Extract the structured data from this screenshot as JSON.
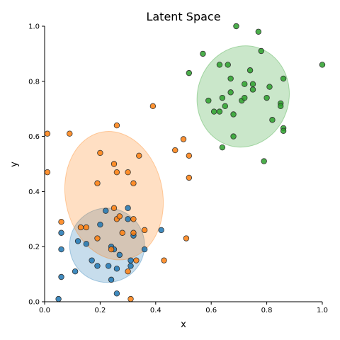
{
  "chart_data": {
    "type": "scatter",
    "title": "Latent Space",
    "xlabel": "x",
    "ylabel": "y",
    "xlim": [
      0,
      1
    ],
    "ylim": [
      0,
      1
    ],
    "xticks": [
      "0.0",
      "0.2",
      "0.4",
      "0.6",
      "0.8",
      "1.0"
    ],
    "yticks": [
      "0.0",
      "0.2",
      "0.4",
      "0.6",
      "0.8",
      "1.0"
    ],
    "grid": false,
    "legend": null,
    "series": [
      {
        "color": "#1f77b4",
        "points": [
          [
            0.05,
            0.01
          ],
          [
            0.06,
            0.25
          ],
          [
            0.06,
            0.19
          ],
          [
            0.06,
            0.09
          ],
          [
            0.11,
            0.11
          ],
          [
            0.12,
            0.22
          ],
          [
            0.15,
            0.21
          ],
          [
            0.17,
            0.15
          ],
          [
            0.19,
            0.13
          ],
          [
            0.2,
            0.28
          ],
          [
            0.22,
            0.33
          ],
          [
            0.23,
            0.13
          ],
          [
            0.24,
            0.08
          ],
          [
            0.24,
            0.2
          ],
          [
            0.25,
            0.19
          ],
          [
            0.26,
            0.12
          ],
          [
            0.26,
            0.03
          ],
          [
            0.27,
            0.17
          ],
          [
            0.3,
            0.34
          ],
          [
            0.3,
            0.3
          ],
          [
            0.31,
            0.15
          ],
          [
            0.31,
            0.13
          ],
          [
            0.32,
            0.24
          ],
          [
            0.36,
            0.19
          ],
          [
            0.42,
            0.26
          ]
        ],
        "ellipse": {
          "cx": 0.225,
          "cy": 0.205,
          "rx": 0.135,
          "ry": 0.135
        }
      },
      {
        "color": "#ff7f0e",
        "points": [
          [
            0.01,
            0.61
          ],
          [
            0.01,
            0.47
          ],
          [
            0.06,
            0.29
          ],
          [
            0.09,
            0.61
          ],
          [
            0.13,
            0.27
          ],
          [
            0.15,
            0.27
          ],
          [
            0.19,
            0.43
          ],
          [
            0.19,
            0.23
          ],
          [
            0.2,
            0.54
          ],
          [
            0.24,
            0.19
          ],
          [
            0.25,
            0.5
          ],
          [
            0.25,
            0.34
          ],
          [
            0.26,
            0.64
          ],
          [
            0.26,
            0.47
          ],
          [
            0.26,
            0.3
          ],
          [
            0.27,
            0.31
          ],
          [
            0.28,
            0.25
          ],
          [
            0.3,
            0.47
          ],
          [
            0.3,
            0.11
          ],
          [
            0.31,
            0.01
          ],
          [
            0.32,
            0.43
          ],
          [
            0.32,
            0.3
          ],
          [
            0.32,
            0.25
          ],
          [
            0.33,
            0.15
          ],
          [
            0.34,
            0.53
          ],
          [
            0.36,
            0.26
          ],
          [
            0.39,
            0.71
          ],
          [
            0.43,
            0.15
          ],
          [
            0.47,
            0.55
          ],
          [
            0.5,
            0.59
          ],
          [
            0.51,
            0.23
          ],
          [
            0.52,
            0.53
          ],
          [
            0.52,
            0.45
          ]
        ],
        "ellipse": {
          "cx": 0.25,
          "cy": 0.385,
          "rx": 0.175,
          "ry": 0.235,
          "angle": -11
        }
      },
      {
        "color": "#2ca02c",
        "points": [
          [
            0.52,
            0.83
          ],
          [
            0.57,
            0.9
          ],
          [
            0.59,
            0.73
          ],
          [
            0.61,
            0.69
          ],
          [
            0.63,
            0.86
          ],
          [
            0.63,
            0.69
          ],
          [
            0.64,
            0.74
          ],
          [
            0.64,
            0.56
          ],
          [
            0.65,
            0.71
          ],
          [
            0.66,
            0.86
          ],
          [
            0.67,
            0.81
          ],
          [
            0.67,
            0.76
          ],
          [
            0.68,
            0.68
          ],
          [
            0.68,
            0.6
          ],
          [
            0.69,
            1.0
          ],
          [
            0.71,
            0.73
          ],
          [
            0.72,
            0.79
          ],
          [
            0.72,
            0.74
          ],
          [
            0.74,
            0.84
          ],
          [
            0.75,
            0.79
          ],
          [
            0.75,
            0.77
          ],
          [
            0.77,
            0.98
          ],
          [
            0.78,
            0.91
          ],
          [
            0.79,
            0.51
          ],
          [
            0.8,
            0.74
          ],
          [
            0.81,
            0.78
          ],
          [
            0.82,
            0.66
          ],
          [
            0.85,
            0.72
          ],
          [
            0.85,
            0.71
          ],
          [
            0.86,
            0.63
          ],
          [
            0.86,
            0.62
          ],
          [
            0.86,
            0.81
          ],
          [
            1.0,
            0.86
          ]
        ],
        "ellipse": {
          "cx": 0.715,
          "cy": 0.745,
          "rx": 0.165,
          "ry": 0.185,
          "angle": 15
        }
      }
    ]
  }
}
